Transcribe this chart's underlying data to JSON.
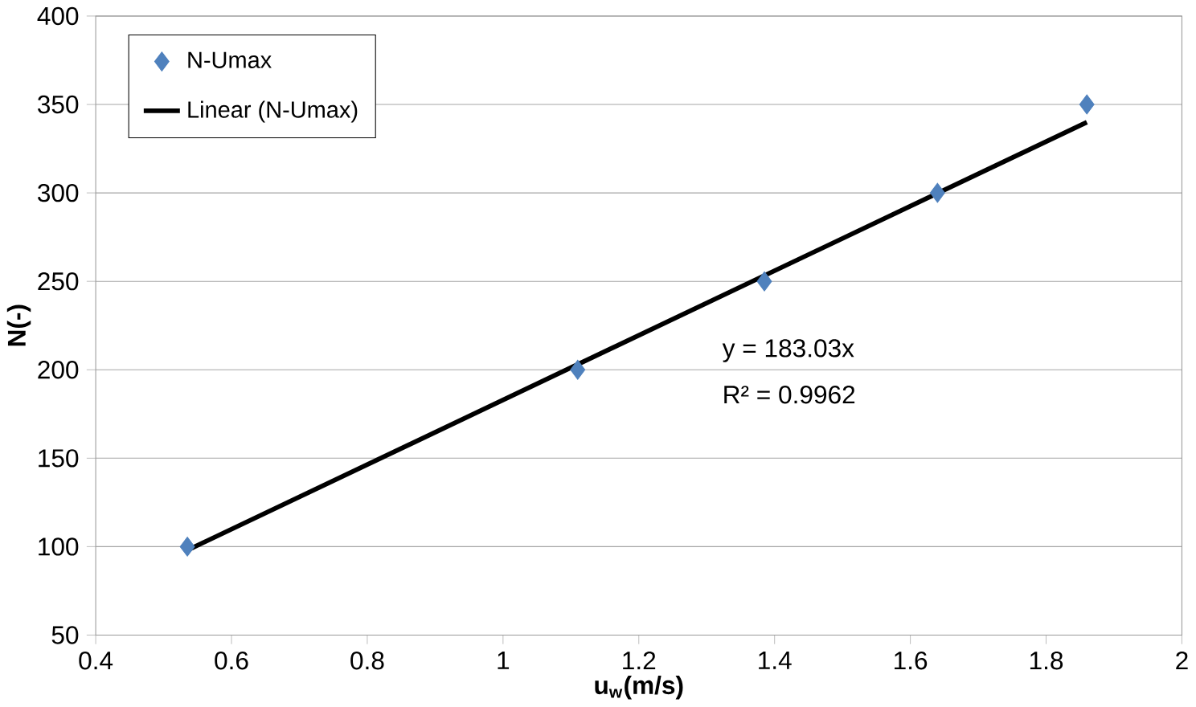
{
  "chart_data": {
    "type": "scatter",
    "xlabel": "u$_{w}$(m/s)",
    "ylabel": "N(-)",
    "xlim": [
      0.4,
      2
    ],
    "xticks": [
      0.4,
      0.6,
      0.8,
      1,
      1.2,
      1.4,
      1.6,
      1.8,
      2
    ],
    "ylim": [
      50,
      400
    ],
    "yticks": [
      50,
      100,
      150,
      200,
      250,
      300,
      350,
      400
    ],
    "grid": "y",
    "legend": "top left",
    "marker": "diamond",
    "series": [
      {
        "name": "N-Umax",
        "color": "#4f81bd",
        "x": [
          0.535,
          1.11,
          1.385,
          1.64,
          1.86
        ],
        "values": [
          100,
          200,
          250,
          300,
          350
        ]
      },
      {
        "name": "Linear (N-Umax)",
        "type": "line",
        "color": "#000000",
        "line_style": "solid",
        "marker": "none",
        "x": [
          0.535,
          1.86
        ],
        "values": [
          98,
          340
        ]
      }
    ],
    "annotations": [
      "y = 183.03x",
      "R² = 0.9962"
    ]
  }
}
